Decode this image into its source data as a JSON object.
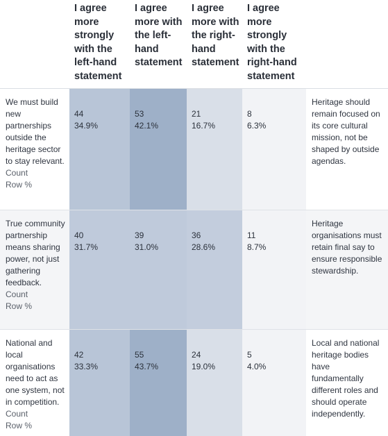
{
  "headers": [
    "I agree more strongly with the left-hand statement",
    "I agree more with the left-hand statement",
    "I agree more with the right-hand statement",
    "I agree more strongly with the right-hand statement"
  ],
  "row_sub_labels": [
    "Count",
    "Row %"
  ],
  "rows": [
    {
      "left": "We must build new partnerships outside the heritage sector to stay relevant.",
      "right": "Heritage should remain focused on its core cultural mission, not be shaped by outside agendas.",
      "counts": [
        "44",
        "53",
        "21",
        "8"
      ],
      "percents": [
        "34.9%",
        "42.1%",
        "16.7%",
        "6.3%"
      ]
    },
    {
      "left": "True community partnership means sharing power, not just gathering feedback.",
      "right": "Heritage organisations must retain final say to ensure responsible stewardship.",
      "counts": [
        "40",
        "39",
        "36",
        "11"
      ],
      "percents": [
        "31.7%",
        "31.0%",
        "28.6%",
        "8.7%"
      ]
    },
    {
      "left": "National and local organisations need to act as one system, not in competition.",
      "right": "Local and national heritage bodies have fundamentally different roles and should operate independently.",
      "counts": [
        "42",
        "55",
        "24",
        "5"
      ],
      "percents": [
        "33.3%",
        "43.7%",
        "19.0%",
        "4.0%"
      ]
    }
  ]
}
